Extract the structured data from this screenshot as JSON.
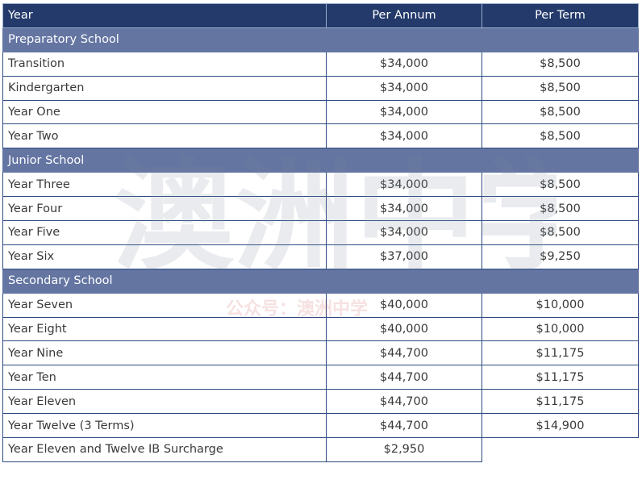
{
  "table": {
    "headers": [
      "Year",
      "Per Annum",
      "Per Term"
    ],
    "sections": [
      {
        "title": "Preparatory School",
        "rows": [
          {
            "year": "Transition",
            "annum": "$34,000",
            "term": "$8,500"
          },
          {
            "year": "Kindergarten",
            "annum": "$34,000",
            "term": "$8,500"
          },
          {
            "year": "Year One",
            "annum": "$34,000",
            "term": "$8,500"
          },
          {
            "year": "Year Two",
            "annum": "$34,000",
            "term": "$8,500"
          }
        ]
      },
      {
        "title": "Junior School",
        "rows": [
          {
            "year": "Year Three",
            "annum": "$34,000",
            "term": "$8,500"
          },
          {
            "year": "Year Four",
            "annum": "$34,000",
            "term": "$8,500"
          },
          {
            "year": "Year Five",
            "annum": "$34,000",
            "term": "$8,500"
          },
          {
            "year": "Year Six",
            "annum": "$37,000",
            "term": "$9,250"
          }
        ]
      },
      {
        "title": "Secondary School",
        "rows": [
          {
            "year": "Year Seven",
            "annum": "$40,000",
            "term": "$10,000"
          },
          {
            "year": "Year Eight",
            "annum": "$40,000",
            "term": "$10,000"
          },
          {
            "year": "Year Nine",
            "annum": "$44,700",
            "term": "$11,175"
          },
          {
            "year": "Year Ten",
            "annum": "$44,700",
            "term": "$11,175"
          },
          {
            "year": "Year Eleven",
            "annum": "$44,700",
            "term": "$11,175"
          },
          {
            "year": "Year Twelve (3 Terms)",
            "annum": "$44,700",
            "term": "$14,900"
          },
          {
            "year": "Year Eleven and Twelve IB Surcharge",
            "annum": "$2,950",
            "term": ""
          }
        ]
      }
    ]
  },
  "watermark": {
    "main_text": "澳洲中学",
    "sub_text": "公众号：澳洲中学"
  },
  "colors": {
    "header_bg": "#233a6b",
    "section_bg": "#6475a2",
    "border": "#2e4b82"
  }
}
